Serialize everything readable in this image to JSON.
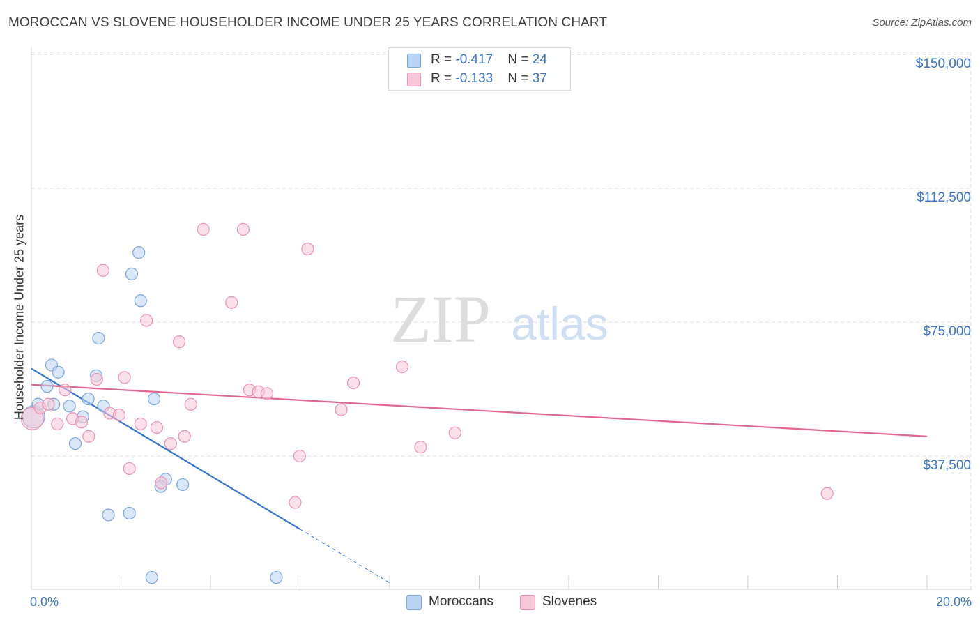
{
  "title": "MOROCCAN VS SLOVENE HOUSEHOLDER INCOME UNDER 25 YEARS CORRELATION CHART",
  "source": "Source: ZipAtlas.com",
  "watermark": {
    "zip": "ZIP",
    "atlas": "atlas"
  },
  "legend": {
    "moroccans": {
      "r_label": "R = ",
      "r_value": "-0.417",
      "n_label": "N = ",
      "n_value": "24"
    },
    "slovenes": {
      "r_label": "R = ",
      "r_value": "-0.133",
      "n_label": "N = ",
      "n_value": "37"
    }
  },
  "series_labels": {
    "moroccans": "Moroccans",
    "slovenes": "Slovenes"
  },
  "colors": {
    "moroccans_fill": "#b9d3f3",
    "moroccans_stroke": "#7aa6de",
    "moroccans_line": "#2f74d0",
    "slovenes_fill": "#f9c6d6",
    "slovenes_stroke": "#eb93b1",
    "slovenes_line": "#e0668e",
    "axis_text": "#3a74c4",
    "grid": "#dddddd"
  },
  "chart_data": {
    "type": "scatter",
    "title": "MOROCCAN VS SLOVENE HOUSEHOLDER INCOME UNDER 25 YEARS CORRELATION CHART",
    "xlabel": "",
    "ylabel": "Householder Income Under 25 years",
    "xlim": [
      0,
      20
    ],
    "ylim": [
      0,
      155000
    ],
    "x_tick_labels": [
      "0.0%",
      "20.0%"
    ],
    "y_ticks": [
      37500,
      75000,
      112500,
      150000
    ],
    "y_tick_labels": [
      "$37,500",
      "$75,000",
      "$112,500",
      "$150,000"
    ],
    "series": [
      {
        "name": "Moroccans",
        "r": -0.417,
        "n": 24,
        "points": [
          {
            "x": 0.05,
            "y": 48500,
            "size": "large"
          },
          {
            "x": 0.15,
            "y": 52000
          },
          {
            "x": 0.35,
            "y": 57000
          },
          {
            "x": 0.45,
            "y": 63000
          },
          {
            "x": 0.6,
            "y": 61000
          },
          {
            "x": 0.5,
            "y": 52000
          },
          {
            "x": 0.85,
            "y": 51500
          },
          {
            "x": 1.15,
            "y": 48500
          },
          {
            "x": 0.98,
            "y": 41000
          },
          {
            "x": 1.27,
            "y": 53500
          },
          {
            "x": 1.45,
            "y": 60000
          },
          {
            "x": 1.5,
            "y": 70500
          },
          {
            "x": 1.61,
            "y": 51500
          },
          {
            "x": 2.24,
            "y": 88500
          },
          {
            "x": 2.4,
            "y": 94500
          },
          {
            "x": 2.44,
            "y": 81000
          },
          {
            "x": 2.74,
            "y": 53500
          },
          {
            "x": 3.0,
            "y": 31000
          },
          {
            "x": 2.89,
            "y": 29000
          },
          {
            "x": 3.38,
            "y": 29500
          },
          {
            "x": 1.72,
            "y": 21000
          },
          {
            "x": 2.19,
            "y": 21500
          },
          {
            "x": 2.69,
            "y": 3500
          },
          {
            "x": 5.47,
            "y": 3500
          }
        ]
      },
      {
        "name": "Slovenes",
        "r": -0.133,
        "n": 37,
        "points": [
          {
            "x": 0.02,
            "y": 48000,
            "size": "large"
          },
          {
            "x": 0.2,
            "y": 51000
          },
          {
            "x": 0.38,
            "y": 52000
          },
          {
            "x": 0.58,
            "y": 46500
          },
          {
            "x": 0.75,
            "y": 56000
          },
          {
            "x": 0.92,
            "y": 48000
          },
          {
            "x": 1.12,
            "y": 47000
          },
          {
            "x": 1.28,
            "y": 43000
          },
          {
            "x": 1.46,
            "y": 59000
          },
          {
            "x": 1.6,
            "y": 89500
          },
          {
            "x": 1.75,
            "y": 49500
          },
          {
            "x": 1.96,
            "y": 49000
          },
          {
            "x": 2.08,
            "y": 59500
          },
          {
            "x": 2.19,
            "y": 34000
          },
          {
            "x": 2.44,
            "y": 46500
          },
          {
            "x": 2.57,
            "y": 75500
          },
          {
            "x": 2.8,
            "y": 45500
          },
          {
            "x": 2.9,
            "y": 30000
          },
          {
            "x": 3.11,
            "y": 41000
          },
          {
            "x": 3.3,
            "y": 69500
          },
          {
            "x": 3.42,
            "y": 43000
          },
          {
            "x": 3.56,
            "y": 52000
          },
          {
            "x": 3.84,
            "y": 101000
          },
          {
            "x": 4.47,
            "y": 80500
          },
          {
            "x": 4.73,
            "y": 101000
          },
          {
            "x": 4.87,
            "y": 56000
          },
          {
            "x": 5.07,
            "y": 55500
          },
          {
            "x": 5.26,
            "y": 55000
          },
          {
            "x": 5.89,
            "y": 24500
          },
          {
            "x": 5.99,
            "y": 37500
          },
          {
            "x": 6.17,
            "y": 95500
          },
          {
            "x": 6.92,
            "y": 50500
          },
          {
            "x": 7.19,
            "y": 58000
          },
          {
            "x": 8.28,
            "y": 62500
          },
          {
            "x": 8.69,
            "y": 40000
          },
          {
            "x": 9.46,
            "y": 44000
          },
          {
            "x": 17.77,
            "y": 27000
          }
        ]
      }
    ],
    "trendlines": [
      {
        "series": "Moroccans",
        "x0": 0,
        "y0": 62000,
        "x1": 6.0,
        "y1": 17000,
        "dashed_to_x": 8.0,
        "dashed_to_y": 2000
      },
      {
        "series": "Slovenes",
        "x0": 0,
        "y0": 57500,
        "x1": 20,
        "y1": 43000
      }
    ]
  }
}
